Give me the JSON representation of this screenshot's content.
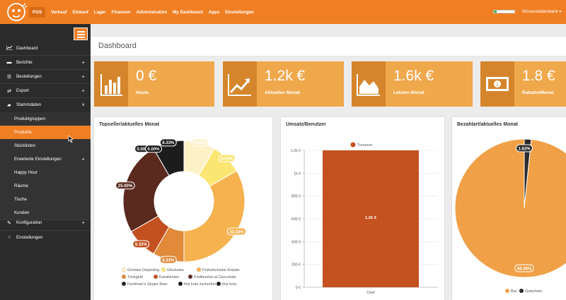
{
  "topbar": {
    "nav": [
      "POS",
      "Verkauf",
      "Einkauf",
      "Lager",
      "Finanzen",
      "Administration",
      "My Dashboard",
      "Apps",
      "Einstellungen"
    ],
    "user_name": "Wissensdatenbank",
    "user_caret": "▾"
  },
  "sidebar": {
    "dashboard": "Dashboard",
    "berichte": "Berichte",
    "bestellungen": "Bestellungen",
    "export": "Export",
    "stammdaten": "Stammdaten",
    "sub": [
      "Produktgruppen",
      "Produkte",
      "Stücklisten",
      "Erweiterte Einstellungen",
      "Happy Hour",
      "Räume",
      "Tische",
      "Kunden"
    ],
    "konfiguration": "Konfiguration",
    "einstellungen": "Einstellungen",
    "plus": "+",
    "close": "×"
  },
  "page": {
    "title": "Dashboard"
  },
  "kpis": [
    {
      "value": "0 €",
      "label": "Heute"
    },
    {
      "value": "1.2k €",
      "label": "Aktuelles Monat"
    },
    {
      "value": "1.6k €",
      "label": "Letzten Monat"
    },
    {
      "value": "1.8 €",
      "label": "Rabatte/Monat"
    }
  ],
  "panels": {
    "topseller": "Topseller/aktuelles Monat",
    "umsatz": "Umsatz/Benutzer",
    "bezahlart": "Bezahlart/aktuelles Monat"
  },
  "chart_data": [
    {
      "type": "pie",
      "title": "Topseller/aktuelles Monat",
      "categories": [
        "Grüntee Darjeeling",
        "Glückstee",
        "Frühstückstee Kräuter",
        "Trinkgeld",
        "Kamillentee",
        "Profiteroles al Cioccolate",
        "Fentiman's Ginger Beer",
        "fritz kola zuckerfrei",
        "fritz kola"
      ],
      "values": [
        8.33,
        8.33,
        33.33,
        8.33,
        8.33,
        25.0,
        0.0,
        0.0,
        8.33
      ],
      "value_labels": [
        "8.33%",
        "8.33%",
        "33.33%",
        "8.33%",
        "8.33%",
        "25.00%",
        "0.00%",
        "0.00%",
        "8.33%"
      ],
      "colors": [
        "#fdf1c8",
        "#fbe673",
        "#f5b24f",
        "#e08a3a",
        "#c2511f",
        "#5a2a1f",
        "#222222",
        "#141414",
        "#1c1c1c"
      ],
      "legend": "bottom"
    },
    {
      "type": "bar",
      "title": "Umsatz/Benutzer",
      "categories": [
        "Chef"
      ],
      "series": [
        {
          "name": "Turnover",
          "values": [
            1200
          ]
        }
      ],
      "value_labels": [
        "1.2k €"
      ],
      "yticks": [
        "0 €",
        "200 €",
        "400 €",
        "600 €",
        "800 €",
        "1k €",
        "1.2k €"
      ],
      "ylim": [
        0,
        1200
      ],
      "color": "#c4511f",
      "legend": "top"
    },
    {
      "type": "pie",
      "title": "Bezahlart/aktuelles Monat",
      "categories": [
        "Bar",
        "Gutschein"
      ],
      "values": [
        98.38,
        1.62
      ],
      "value_labels": [
        "98.38%",
        "1.62%"
      ],
      "colors": [
        "#f0a046",
        "#2b2b2b"
      ],
      "legend": "bottom"
    }
  ]
}
